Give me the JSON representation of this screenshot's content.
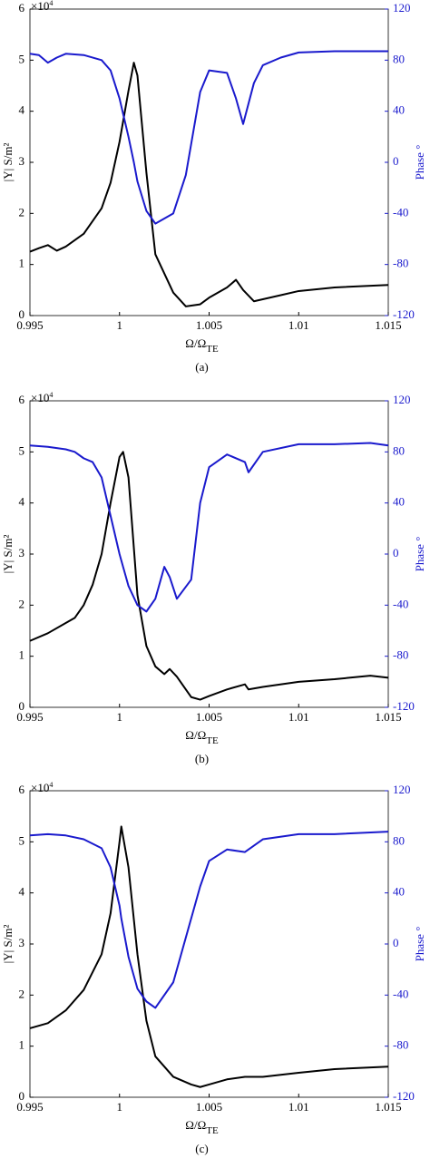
{
  "chart_data": [
    {
      "type": "line",
      "caption": "(a)",
      "multiplier": "×10",
      "multiplier_exp": "4",
      "ylabel": "|Y| S/m²",
      "y2label": "Phase °",
      "xlabel": "Ω/Ω",
      "xlabel_sub": "TE",
      "xlim": [
        0.995,
        1.015
      ],
      "xticks": [
        0.995,
        1,
        1.005,
        1.01,
        1.015
      ],
      "ylim": [
        0,
        6
      ],
      "yticks": [
        0,
        1,
        2,
        3,
        4,
        5,
        6
      ],
      "y2lim": [
        -120,
        120
      ],
      "y2ticks": [
        -120,
        -80,
        -40,
        0,
        40,
        80,
        120
      ],
      "x": [
        0.995,
        0.9955,
        0.996,
        0.9965,
        0.997,
        0.998,
        0.999,
        0.9995,
        1.0,
        1.0005,
        1.0008,
        1.001,
        1.0015,
        1.002,
        1.003,
        1.0037,
        1.0045,
        1.005,
        1.006,
        1.0065,
        1.0069,
        1.0075,
        1.008,
        1.009,
        1.01,
        1.012,
        1.015
      ],
      "series": [
        {
          "color": "#000000",
          "values": [
            1.25,
            1.32,
            1.38,
            1.27,
            1.35,
            1.6,
            2.1,
            2.6,
            3.4,
            4.4,
            4.95,
            4.7,
            2.8,
            1.2,
            0.45,
            0.18,
            0.22,
            0.35,
            0.55,
            0.7,
            0.5,
            0.28,
            0.32,
            0.4,
            0.48,
            0.55,
            0.6
          ]
        },
        {
          "color": "#1a1acd",
          "axis": "y2",
          "values": [
            85,
            84,
            78,
            82,
            85,
            84,
            80,
            72,
            50,
            20,
            0,
            -15,
            -38,
            -48,
            -40,
            -10,
            55,
            72,
            70,
            50,
            30,
            62,
            76,
            82,
            86,
            87,
            87
          ]
        }
      ]
    },
    {
      "type": "line",
      "caption": "(b)",
      "multiplier": "×10",
      "multiplier_exp": "4",
      "ylabel": "|Y| S/m²",
      "y2label": "Phase °",
      "xlabel": "Ω/Ω",
      "xlabel_sub": "TE",
      "xlim": [
        0.995,
        1.015
      ],
      "xticks": [
        0.995,
        1,
        1.005,
        1.01,
        1.015
      ],
      "ylim": [
        0,
        6
      ],
      "yticks": [
        0,
        1,
        2,
        3,
        4,
        5,
        6
      ],
      "y2lim": [
        -120,
        120
      ],
      "y2ticks": [
        -120,
        -80,
        -40,
        0,
        40,
        80,
        120
      ],
      "x": [
        0.995,
        0.996,
        0.997,
        0.9975,
        0.998,
        0.9985,
        0.999,
        0.9995,
        1.0,
        1.0002,
        1.0005,
        1.001,
        1.0015,
        1.002,
        1.0025,
        1.0028,
        1.0032,
        1.004,
        1.0045,
        1.005,
        1.006,
        1.007,
        1.0072,
        1.008,
        1.01,
        1.012,
        1.014,
        1.015
      ],
      "series": [
        {
          "color": "#000000",
          "values": [
            1.3,
            1.45,
            1.65,
            1.75,
            2.0,
            2.4,
            3.0,
            4.0,
            4.9,
            5.0,
            4.5,
            2.2,
            1.2,
            0.8,
            0.65,
            0.75,
            0.6,
            0.2,
            0.15,
            0.22,
            0.35,
            0.45,
            0.35,
            0.4,
            0.5,
            0.55,
            0.62,
            0.58
          ]
        },
        {
          "color": "#1a1acd",
          "axis": "y2",
          "values": [
            85,
            84,
            82,
            80,
            75,
            72,
            60,
            30,
            0,
            -10,
            -25,
            -40,
            -45,
            -35,
            -10,
            -18,
            -35,
            -20,
            40,
            68,
            78,
            72,
            64,
            80,
            86,
            86,
            87,
            85
          ]
        }
      ]
    },
    {
      "type": "line",
      "caption": "(c)",
      "multiplier": "×10",
      "multiplier_exp": "4",
      "ylabel": "|Y| S/m²",
      "y2label": "Phase °",
      "xlabel": "Ω/Ω",
      "xlabel_sub": "TE",
      "xlim": [
        0.995,
        1.015
      ],
      "xticks": [
        0.995,
        1,
        1.005,
        1.01,
        1.015
      ],
      "ylim": [
        0,
        6
      ],
      "yticks": [
        0,
        1,
        2,
        3,
        4,
        5,
        6
      ],
      "y2lim": [
        -120,
        120
      ],
      "y2ticks": [
        -120,
        -80,
        -40,
        0,
        40,
        80,
        120
      ],
      "x": [
        0.995,
        0.996,
        0.997,
        0.998,
        0.999,
        0.9995,
        1.0,
        1.0001,
        1.0005,
        1.001,
        1.0015,
        1.002,
        1.003,
        1.004,
        1.0045,
        1.005,
        1.006,
        1.007,
        1.008,
        1.01,
        1.012,
        1.015
      ],
      "series": [
        {
          "color": "#000000",
          "values": [
            1.35,
            1.45,
            1.7,
            2.1,
            2.8,
            3.6,
            5.0,
            5.3,
            4.5,
            2.8,
            1.5,
            0.8,
            0.4,
            0.25,
            0.2,
            0.25,
            0.35,
            0.4,
            0.4,
            0.48,
            0.55,
            0.6
          ]
        },
        {
          "color": "#1a1acd",
          "axis": "y2",
          "values": [
            85,
            86,
            85,
            82,
            75,
            60,
            30,
            20,
            -10,
            -35,
            -45,
            -50,
            -30,
            20,
            45,
            65,
            74,
            72,
            82,
            86,
            86,
            88
          ]
        }
      ]
    }
  ]
}
